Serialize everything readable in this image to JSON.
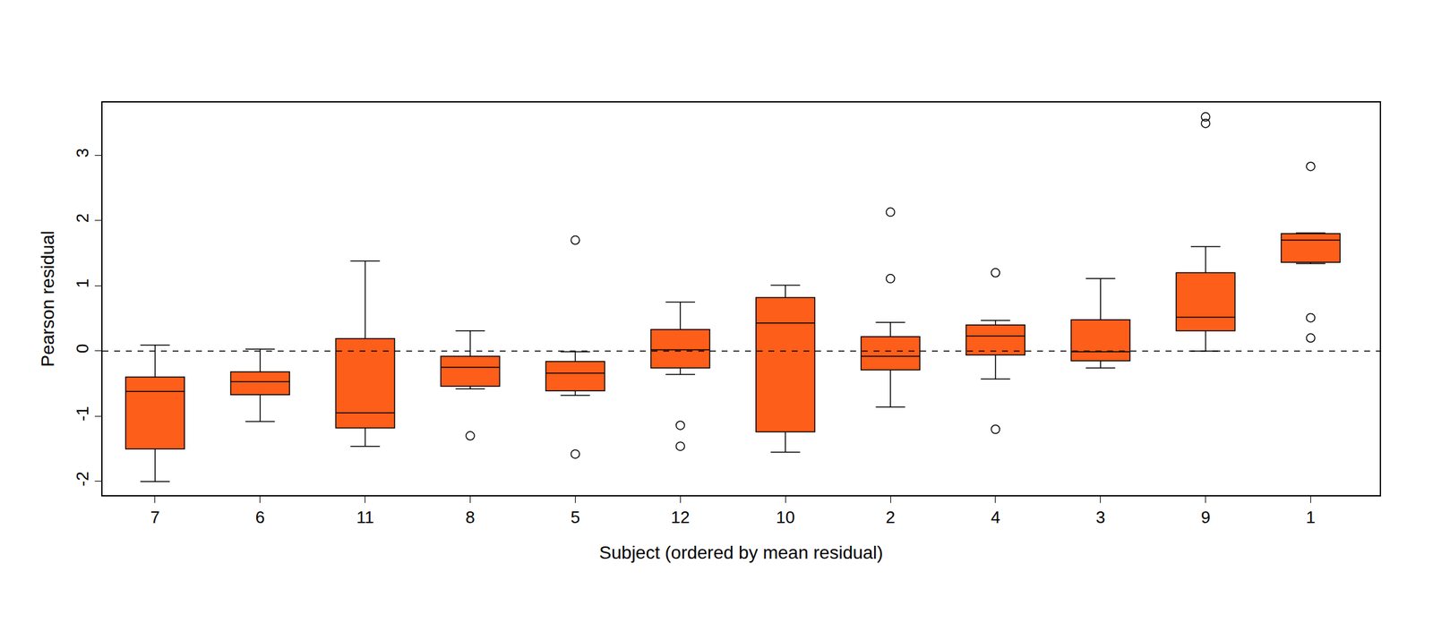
{
  "chart_data": {
    "type": "box",
    "x_label": "Subject (ordered by mean residual)",
    "y_label": "Pearson residual",
    "categories": [
      "7",
      "6",
      "11",
      "8",
      "5",
      "12",
      "10",
      "2",
      "4",
      "3",
      "9",
      "1"
    ],
    "lower_whisker": [
      -2.0,
      -1.08,
      -1.46,
      -0.58,
      -0.68,
      -0.36,
      -1.55,
      -0.86,
      -0.43,
      -0.26,
      0.0,
      1.34
    ],
    "q1": [
      -1.5,
      -0.67,
      -1.18,
      -0.54,
      -0.61,
      -0.26,
      -1.24,
      -0.29,
      -0.06,
      -0.15,
      0.31,
      1.36
    ],
    "median": [
      -0.62,
      -0.47,
      -0.95,
      -0.25,
      -0.34,
      0.02,
      0.43,
      -0.08,
      0.23,
      -0.01,
      0.52,
      1.7
    ],
    "q3": [
      -0.4,
      -0.32,
      0.19,
      -0.08,
      -0.16,
      0.33,
      0.82,
      0.22,
      0.4,
      0.48,
      1.2,
      1.8
    ],
    "upper_whisker": [
      0.09,
      0.03,
      1.38,
      0.31,
      -0.01,
      0.75,
      1.01,
      0.44,
      0.47,
      1.11,
      1.6,
      1.81
    ],
    "outliers": [
      [],
      [],
      [],
      [
        -1.3
      ],
      [
        1.7,
        -1.58
      ],
      [
        -1.14,
        -1.46
      ],
      [],
      [
        2.13,
        1.11
      ],
      [
        1.2,
        -1.2
      ],
      [],
      [
        3.59,
        3.49
      ],
      [
        2.83,
        0.51,
        0.2
      ]
    ],
    "color": "#fd5e19",
    "marker": "circle-open",
    "reference_line": 0,
    "ylim": [
      -2.21,
      3.81
    ],
    "yticks": [
      -2,
      -1,
      0,
      1,
      2,
      3
    ],
    "grid": false
  }
}
